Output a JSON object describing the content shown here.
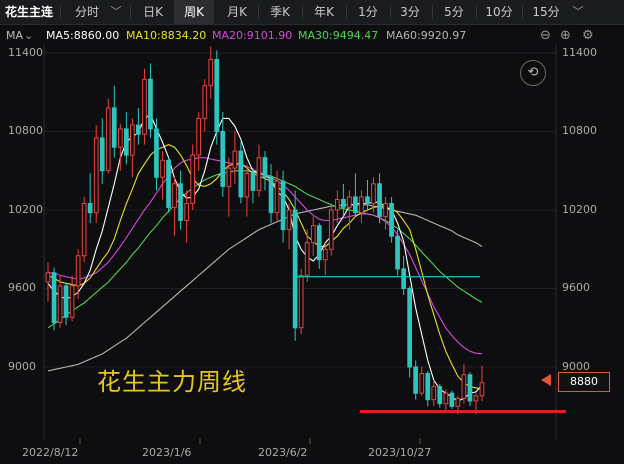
{
  "tabs": {
    "instrument": "花生主连",
    "fenshi": "分时",
    "day": "日K",
    "week": "周K",
    "month": "月K",
    "season": "季K",
    "year": "年K",
    "m1": "1分",
    "m3": "3分",
    "m5": "5分",
    "m10": "10分",
    "m15": "15分"
  },
  "ma": {
    "label": "MA",
    "ma5": "MA5:8860.00",
    "ma10": "MA10:8834.20",
    "ma20": "MA20:9101.90",
    "ma30": "MA30:9494.47",
    "ma60": "MA60:9920.97"
  },
  "colors": {
    "up": "#e8413c",
    "down": "#2ec5c0",
    "ma5": "#ffffff",
    "ma10": "#e6e12a",
    "ma20": "#d24ad6",
    "ma30": "#4fd34f",
    "ma60": "#b5b5b5",
    "hline": "#19b3b8",
    "support": "#e02020"
  },
  "current_price": "8880",
  "annotation": "花生主力周线",
  "chart_data": {
    "type": "candlestick",
    "title": "花生主连 周K",
    "y_ticks": [
      "11400",
      "10800",
      "10200",
      "9600",
      "9000"
    ],
    "x_ticks": [
      "2022/8/12",
      "2023/1/6",
      "2023/6/2",
      "2023/10/27"
    ],
    "ylim": [
      8580,
      11520
    ],
    "candles": [
      [
        9650,
        9800,
        9500,
        9720
      ],
      [
        9720,
        9760,
        9280,
        9340
      ],
      [
        9340,
        9700,
        9300,
        9620
      ],
      [
        9620,
        9640,
        9320,
        9380
      ],
      [
        9380,
        9700,
        9350,
        9620
      ],
      [
        9620,
        9900,
        9520,
        9850
      ],
      [
        9850,
        10300,
        9800,
        10250
      ],
      [
        10250,
        10480,
        10100,
        10180
      ],
      [
        10180,
        10850,
        10100,
        10750
      ],
      [
        10750,
        10900,
        10400,
        10500
      ],
      [
        10500,
        11050,
        10480,
        10980
      ],
      [
        10980,
        11150,
        10600,
        10680
      ],
      [
        10680,
        10860,
        10500,
        10820
      ],
      [
        10820,
        10950,
        10550,
        10620
      ],
      [
        10620,
        10900,
        10450,
        10850
      ],
      [
        10850,
        10980,
        10700,
        10780
      ],
      [
        10780,
        11280,
        10700,
        11200
      ],
      [
        11200,
        11320,
        10750,
        10820
      ],
      [
        10820,
        10900,
        10350,
        10450
      ],
      [
        10450,
        10650,
        10280,
        10580
      ],
      [
        10580,
        10600,
        10180,
        10220
      ],
      [
        10220,
        10450,
        10000,
        10400
      ],
      [
        10400,
        10500,
        10050,
        10120
      ],
      [
        10120,
        10350,
        9950,
        10250
      ],
      [
        10250,
        10700,
        10200,
        10620
      ],
      [
        10620,
        10950,
        10500,
        10900
      ],
      [
        10900,
        11200,
        10800,
        11150
      ],
      [
        11150,
        11450,
        11050,
        11350
      ],
      [
        11350,
        11420,
        10700,
        10800
      ],
      [
        10800,
        10950,
        10300,
        10380
      ],
      [
        10380,
        10600,
        10150,
        10520
      ],
      [
        10520,
        10800,
        10400,
        10650
      ],
      [
        10650,
        10720,
        10250,
        10300
      ],
      [
        10300,
        10550,
        10150,
        10480
      ],
      [
        10480,
        10520,
        10250,
        10350
      ],
      [
        10350,
        10700,
        10300,
        10600
      ],
      [
        10600,
        10650,
        10350,
        10450
      ],
      [
        10450,
        10550,
        10100,
        10180
      ],
      [
        10180,
        10500,
        10120,
        10420
      ],
      [
        10420,
        10500,
        9950,
        10050
      ],
      [
        10050,
        10250,
        9900,
        10200
      ],
      [
        10200,
        10350,
        9200,
        9300
      ],
      [
        9300,
        9750,
        9250,
        9700
      ],
      [
        9700,
        10050,
        9650,
        9950
      ],
      [
        9950,
        10150,
        9850,
        10080
      ],
      [
        10080,
        10100,
        9750,
        9820
      ],
      [
        9820,
        9950,
        9700,
        9900
      ],
      [
        9900,
        10250,
        9850,
        10200
      ],
      [
        10200,
        10350,
        10100,
        10280
      ],
      [
        10280,
        10400,
        10150,
        10220
      ],
      [
        10220,
        10350,
        10050,
        10300
      ],
      [
        10300,
        10480,
        10150,
        10180
      ],
      [
        10180,
        10350,
        10100,
        10300
      ],
      [
        10300,
        10430,
        10200,
        10250
      ],
      [
        10250,
        10450,
        10180,
        10400
      ],
      [
        10400,
        10480,
        10100,
        10150
      ],
      [
        10150,
        10300,
        10050,
        10250
      ],
      [
        10250,
        10300,
        9950,
        10000
      ],
      [
        10000,
        10050,
        9700,
        9750
      ],
      [
        9750,
        9850,
        9550,
        9600
      ],
      [
        9600,
        9620,
        8920,
        9000
      ],
      [
        9000,
        9050,
        8750,
        8800
      ],
      [
        8800,
        9000,
        8780,
        8950
      ],
      [
        8950,
        8970,
        8700,
        8750
      ],
      [
        8750,
        8900,
        8700,
        8850
      ],
      [
        8850,
        8870,
        8690,
        8720
      ],
      [
        8720,
        8830,
        8660,
        8800
      ],
      [
        8800,
        8820,
        8680,
        8700
      ],
      [
        8700,
        8780,
        8640,
        8760
      ],
      [
        8760,
        9020,
        8720,
        8940
      ],
      [
        8940,
        8960,
        8700,
        8740
      ],
      [
        8740,
        8800,
        8640,
        8780
      ],
      [
        8780,
        9010,
        8740,
        8880
      ]
    ],
    "ma5": [
      9640,
      9580,
      9540,
      9520,
      9540,
      9570,
      9640,
      9740,
      9900,
      10040,
      10220,
      10400,
      10600,
      10720,
      10760,
      10790,
      10900,
      10930,
      10820,
      10720,
      10600,
      10440,
      10340,
      10290,
      10300,
      10360,
      10500,
      10680,
      10800,
      10900,
      10900,
      10840,
      10740,
      10600,
      10500,
      10480,
      10470,
      10430,
      10340,
      10300,
      10200,
      10000,
      9900,
      9840,
      9810,
      9860,
      9950,
      10000,
      10080,
      10150,
      10230,
      10250,
      10250,
      10250,
      10260,
      10260,
      10220,
      10200,
      10100,
      9960,
      9700,
      9450,
      9250,
      9050,
      8900,
      8830,
      8800,
      8770,
      8740,
      8760,
      8800,
      8810,
      8860
    ],
    "ma10": [
      9700,
      9680,
      9650,
      9640,
      9630,
      9620,
      9640,
      9680,
      9750,
      9820,
      9880,
      9980,
      10120,
      10250,
      10360,
      10480,
      10550,
      10620,
      10660,
      10680,
      10700,
      10680,
      10620,
      10540,
      10440,
      10390,
      10380,
      10400,
      10440,
      10500,
      10540,
      10550,
      10560,
      10520,
      10480,
      10460,
      10440,
      10420,
      10380,
      10340,
      10280,
      10200,
      10100,
      10000,
      9960,
      9920,
      9920,
      9960,
      10000,
      10060,
      10100,
      10150,
      10180,
      10200,
      10220,
      10230,
      10220,
      10210,
      10180,
      10120,
      10050,
      9900,
      9730,
      9550,
      9400,
      9250,
      9120,
      9020,
      8930,
      8880,
      8850,
      8840,
      8834
    ],
    "ma20": [
      9720,
      9720,
      9700,
      9690,
      9680,
      9670,
      9680,
      9700,
      9720,
      9760,
      9800,
      9860,
      9920,
      9990,
      10060,
      10130,
      10200,
      10260,
      10330,
      10400,
      10460,
      10520,
      10560,
      10580,
      10590,
      10600,
      10600,
      10590,
      10580,
      10570,
      10560,
      10550,
      10540,
      10530,
      10510,
      10490,
      10470,
      10450,
      10420,
      10390,
      10350,
      10300,
      10250,
      10200,
      10160,
      10130,
      10120,
      10120,
      10130,
      10140,
      10150,
      10160,
      10170,
      10170,
      10160,
      10140,
      10110,
      10070,
      10010,
      9940,
      9860,
      9760,
      9660,
      9560,
      9460,
      9380,
      9300,
      9240,
      9190,
      9150,
      9120,
      9105,
      9102
    ],
    "ma30": [
      9300,
      9330,
      9360,
      9400,
      9430,
      9460,
      9490,
      9530,
      9570,
      9610,
      9650,
      9700,
      9750,
      9800,
      9860,
      9910,
      9970,
      10030,
      10080,
      10140,
      10190,
      10240,
      10290,
      10330,
      10370,
      10400,
      10430,
      10450,
      10470,
      10480,
      10490,
      10500,
      10500,
      10500,
      10490,
      10480,
      10470,
      10460,
      10440,
      10420,
      10400,
      10380,
      10350,
      10320,
      10300,
      10280,
      10260,
      10240,
      10220,
      10210,
      10200,
      10190,
      10180,
      10170,
      10160,
      10140,
      10120,
      10090,
      10060,
      10020,
      9980,
      9930,
      9880,
      9830,
      9780,
      9730,
      9690,
      9650,
      9610,
      9580,
      9550,
      9520,
      9494
    ],
    "ma60": [
      8970,
      8980,
      8990,
      9000,
      9010,
      9020,
      9040,
      9060,
      9080,
      9100,
      9130,
      9160,
      9190,
      9220,
      9260,
      9300,
      9340,
      9380,
      9420,
      9460,
      9500,
      9540,
      9580,
      9620,
      9660,
      9700,
      9740,
      9780,
      9820,
      9860,
      9900,
      9930,
      9960,
      9990,
      10020,
      10050,
      10070,
      10090,
      10110,
      10130,
      10150,
      10170,
      10180,
      10190,
      10200,
      10210,
      10220,
      10230,
      10230,
      10240,
      10240,
      10240,
      10240,
      10240,
      10230,
      10220,
      10210,
      10200,
      10190,
      10180,
      10170,
      10160,
      10140,
      10120,
      10100,
      10080,
      10060,
      10040,
      10010,
      9990,
      9970,
      9950,
      9921
    ],
    "hline_value": 9690,
    "support_value": 8660
  }
}
